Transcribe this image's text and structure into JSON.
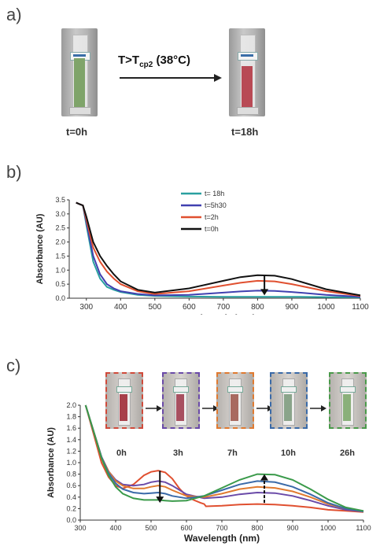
{
  "panel_a": {
    "letter": "a)",
    "condition_main": "T>T",
    "condition_sub": "cp2",
    "condition_tail": " (38°C)",
    "left_caption": "t=0h",
    "right_caption": "t=18h",
    "left_liquid_color": "#7fa46a",
    "right_liquid_color": "#b84a55"
  },
  "panel_c_thumbs": [
    {
      "label": "0h",
      "border": "#d04a3a",
      "liquid": "#a8404a"
    },
    {
      "label": "3h",
      "border": "#6a4aa8",
      "liquid": "#a85060"
    },
    {
      "label": "7h",
      "border": "#e07a30",
      "liquid": "#a86a60"
    },
    {
      "label": "10h",
      "border": "#3a6aa8",
      "liquid": "#8aa48a"
    },
    {
      "label": "26h",
      "border": "#4a9a4a",
      "liquid": "#8ab07a"
    }
  ],
  "chart_data": [
    {
      "type": "line",
      "panel": "b)",
      "xlabel": "Wavelength (nm)",
      "ylabel": "Absorbance (AU)",
      "xlim": [
        250,
        1100
      ],
      "ylim": [
        0,
        3.5
      ],
      "xticks": [
        300,
        400,
        500,
        600,
        700,
        800,
        900,
        1000,
        1100
      ],
      "yticks": [
        "0.0",
        "0.5",
        "1.0",
        "1.5",
        "2.0",
        "2.5",
        "3.0",
        "3.5"
      ],
      "legend_position": "top-right",
      "arrow": {
        "x": 820,
        "from": 0.8,
        "to": 0.1
      },
      "series": [
        {
          "name": "t= 18h",
          "color": "#2aa0a0",
          "x": [
            270,
            280,
            290,
            300,
            320,
            340,
            360,
            380,
            400,
            450,
            500,
            600,
            700,
            800,
            900,
            1000,
            1100
          ],
          "y": [
            3.4,
            3.35,
            3.3,
            2.6,
            1.3,
            0.7,
            0.4,
            0.3,
            0.22,
            0.12,
            0.08,
            0.06,
            0.05,
            0.05,
            0.05,
            0.04,
            0.03
          ]
        },
        {
          "name": "t=5h30",
          "color": "#4040b0",
          "x": [
            270,
            280,
            290,
            300,
            320,
            340,
            360,
            380,
            400,
            450,
            500,
            600,
            700,
            750,
            800,
            850,
            900,
            1000,
            1100
          ],
          "y": [
            3.4,
            3.35,
            3.3,
            2.7,
            1.5,
            0.85,
            0.5,
            0.35,
            0.25,
            0.15,
            0.1,
            0.12,
            0.2,
            0.24,
            0.27,
            0.26,
            0.22,
            0.12,
            0.05
          ]
        },
        {
          "name": "t=2h",
          "color": "#e05030",
          "x": [
            270,
            280,
            290,
            300,
            320,
            340,
            360,
            380,
            400,
            450,
            500,
            600,
            700,
            750,
            800,
            850,
            900,
            1000,
            1100
          ],
          "y": [
            3.4,
            3.35,
            3.3,
            2.8,
            1.8,
            1.3,
            0.95,
            0.7,
            0.5,
            0.25,
            0.15,
            0.25,
            0.45,
            0.55,
            0.62,
            0.6,
            0.5,
            0.25,
            0.08
          ]
        },
        {
          "name": "t=0h",
          "color": "#111111",
          "x": [
            270,
            280,
            290,
            300,
            320,
            340,
            360,
            380,
            400,
            450,
            500,
            600,
            700,
            750,
            800,
            850,
            900,
            1000,
            1100
          ],
          "y": [
            3.4,
            3.35,
            3.3,
            2.9,
            2.0,
            1.5,
            1.15,
            0.85,
            0.6,
            0.3,
            0.2,
            0.35,
            0.62,
            0.75,
            0.82,
            0.8,
            0.68,
            0.32,
            0.1
          ]
        }
      ]
    },
    {
      "type": "line",
      "panel": "c)",
      "xlabel": "Wavelength (nm)",
      "ylabel": "Absorbance (AU)",
      "xlim": [
        300,
        1100
      ],
      "ylim": [
        0,
        2.0
      ],
      "xticks": [
        300,
        400,
        500,
        600,
        700,
        800,
        900,
        1000,
        1100
      ],
      "xtick_labels": [
        "300",
        "400",
        "500",
        "600",
        "700",
        "800",
        "900",
        "1000",
        "1100"
      ],
      "yticks": [
        "0.0",
        "0.2",
        "0.4",
        "0.6",
        "0.8",
        "1.0",
        "1.2",
        "1.4",
        "1.6",
        "1.8",
        "2.0"
      ],
      "arrows": [
        {
          "x": 525,
          "from": 0.86,
          "to": 0.3
        },
        {
          "x": 820,
          "from": 0.3,
          "to": 0.8
        }
      ],
      "series": [
        {
          "name": "0h",
          "color": "#e05030",
          "x": [
            315,
            340,
            360,
            380,
            400,
            420,
            450,
            480,
            500,
            520,
            540,
            560,
            580,
            600,
            620,
            640,
            650,
            655,
            700,
            750,
            800,
            850,
            900,
            950,
            1000,
            1050,
            1100
          ],
          "y": [
            2.0,
            1.45,
            1.0,
            0.75,
            0.6,
            0.55,
            0.62,
            0.78,
            0.84,
            0.86,
            0.83,
            0.72,
            0.55,
            0.42,
            0.35,
            0.3,
            0.28,
            0.24,
            0.25,
            0.27,
            0.28,
            0.27,
            0.25,
            0.22,
            0.18,
            0.16,
            0.14
          ]
        },
        {
          "name": "3h",
          "color": "#6a4aa8",
          "x": [
            315,
            340,
            360,
            380,
            400,
            420,
            450,
            480,
            500,
            520,
            540,
            560,
            600,
            650,
            700,
            750,
            800,
            850,
            900,
            950,
            1000,
            1050,
            1100
          ],
          "y": [
            2.0,
            1.5,
            1.1,
            0.85,
            0.7,
            0.62,
            0.6,
            0.62,
            0.66,
            0.68,
            0.66,
            0.6,
            0.45,
            0.38,
            0.4,
            0.45,
            0.48,
            0.47,
            0.42,
            0.34,
            0.25,
            0.18,
            0.15
          ]
        },
        {
          "name": "7h",
          "color": "#e07a30",
          "x": [
            315,
            340,
            360,
            380,
            400,
            420,
            450,
            480,
            500,
            520,
            540,
            560,
            600,
            650,
            700,
            750,
            800,
            850,
            900,
            950,
            1000,
            1050,
            1100
          ],
          "y": [
            2.0,
            1.5,
            1.1,
            0.85,
            0.68,
            0.6,
            0.55,
            0.55,
            0.58,
            0.6,
            0.58,
            0.52,
            0.42,
            0.4,
            0.46,
            0.54,
            0.58,
            0.56,
            0.5,
            0.4,
            0.28,
            0.2,
            0.15
          ]
        },
        {
          "name": "10h",
          "color": "#3a6aa8",
          "x": [
            315,
            340,
            360,
            380,
            400,
            420,
            450,
            480,
            500,
            520,
            540,
            560,
            600,
            650,
            700,
            750,
            800,
            850,
            900,
            950,
            1000,
            1050,
            1100
          ],
          "y": [
            2.0,
            1.5,
            1.1,
            0.82,
            0.64,
            0.54,
            0.48,
            0.46,
            0.47,
            0.48,
            0.46,
            0.42,
            0.38,
            0.42,
            0.52,
            0.62,
            0.68,
            0.66,
            0.58,
            0.45,
            0.3,
            0.2,
            0.15
          ]
        },
        {
          "name": "26h",
          "color": "#3a9a4a",
          "x": [
            315,
            340,
            360,
            380,
            400,
            420,
            450,
            480,
            500,
            520,
            540,
            560,
            600,
            650,
            700,
            750,
            800,
            850,
            900,
            950,
            1000,
            1050,
            1100
          ],
          "y": [
            2.0,
            1.5,
            1.08,
            0.78,
            0.58,
            0.46,
            0.38,
            0.35,
            0.35,
            0.35,
            0.34,
            0.33,
            0.34,
            0.42,
            0.56,
            0.7,
            0.8,
            0.79,
            0.7,
            0.54,
            0.36,
            0.22,
            0.16
          ]
        }
      ]
    }
  ]
}
